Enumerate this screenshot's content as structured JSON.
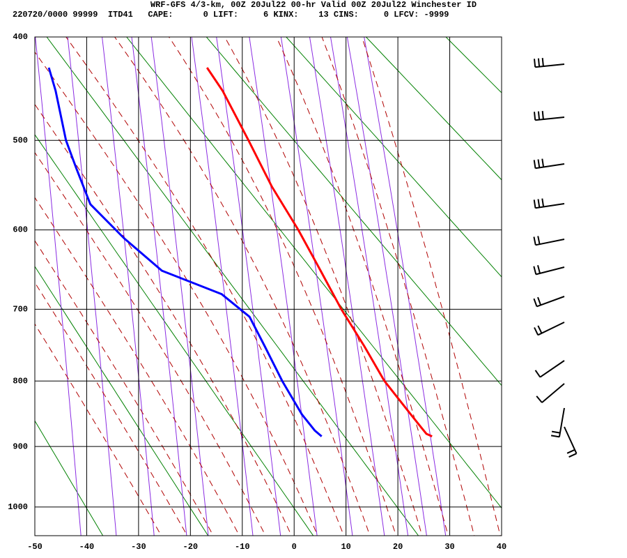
{
  "chart_data": {
    "type": "skewt",
    "title": "WRF-GFS 4/3-km, 00Z 20Jul22 00-hr Valid 00Z 20Jul22 Winchester ID",
    "subtitle": "220720/0000 99999  ITD41   CAPE:      0 LIFT:     6 KINX:    13 CINS:     0 LFCV: -9999",
    "xlim": [
      -50,
      40
    ],
    "xticks": [
      -50,
      -40,
      -30,
      -20,
      -10,
      0,
      10,
      20,
      30,
      40
    ],
    "ylim": [
      400,
      1050
    ],
    "yticks": [
      400,
      500,
      600,
      700,
      800,
      900,
      1000
    ],
    "grid": true,
    "series": [
      {
        "color": "#ff0000",
        "pressure": [
          428,
          450,
          500,
          550,
          600,
          650,
          700,
          750,
          800,
          850,
          870,
          880,
          884
        ],
        "values": [
          -16.8,
          -13.8,
          -8.8,
          -4.3,
          0.8,
          5.1,
          9.1,
          13.5,
          17.4,
          22.5,
          24.5,
          25.5,
          26.6
        ]
      },
      {
        "color": "#0000ff",
        "pressure": [
          428,
          450,
          500,
          530,
          570,
          610,
          650,
          680,
          710,
          750,
          800,
          850,
          875,
          884
        ],
        "values": [
          -47.3,
          -46,
          -44,
          -42,
          -39.3,
          -32.8,
          -25.5,
          -14,
          -8.6,
          -5.7,
          -2.3,
          1.5,
          4,
          5.3
        ]
      }
    ]
  }
}
